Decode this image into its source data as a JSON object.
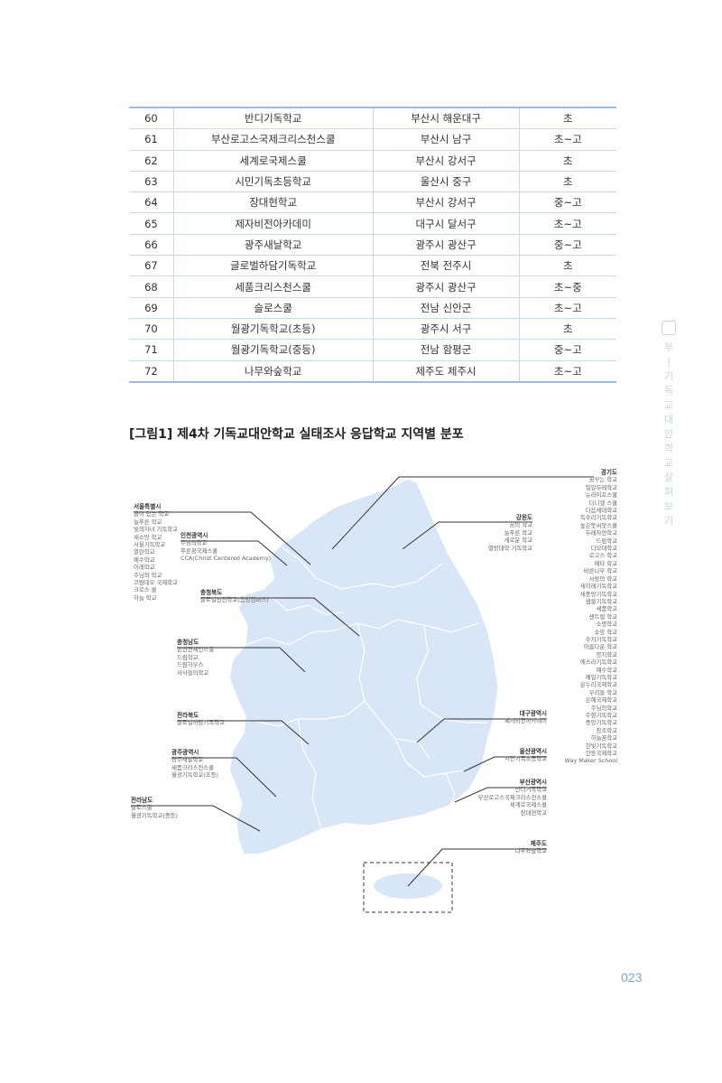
{
  "table": {
    "rows": [
      {
        "no": "60",
        "name": "반디기독학교",
        "region": "부산시 해운대구",
        "level": "초"
      },
      {
        "no": "61",
        "name": "부산로고스국제크리스천스쿨",
        "region": "부산시 남구",
        "level": "초~고"
      },
      {
        "no": "62",
        "name": "세계로국제스쿨",
        "region": "부산시 강서구",
        "level": "초"
      },
      {
        "no": "63",
        "name": "시민기독초등학교",
        "region": "울산시 중구",
        "level": "초"
      },
      {
        "no": "64",
        "name": "장대현학교",
        "region": "부산시 강서구",
        "level": "중~고"
      },
      {
        "no": "65",
        "name": "제자비전아카데미",
        "region": "대구시 달서구",
        "level": "초~고"
      },
      {
        "no": "66",
        "name": "광주새날학교",
        "region": "광주시 광산구",
        "level": "중~고"
      },
      {
        "no": "67",
        "name": "글로벌하담기독학교",
        "region": "전북 전주시",
        "level": "초"
      },
      {
        "no": "68",
        "name": "세품크리스천스쿨",
        "region": "광주시 광산구",
        "level": "초~중"
      },
      {
        "no": "69",
        "name": "슬로스쿨",
        "region": "전남 신안군",
        "level": "초~고"
      },
      {
        "no": "70",
        "name": "월광기독학교(초등)",
        "region": "광주시 서구",
        "level": "초"
      },
      {
        "no": "71",
        "name": "월광기독학교(중등)",
        "region": "전남 함평군",
        "level": "중~고"
      },
      {
        "no": "72",
        "name": "나무와숲학교",
        "region": "제주도 제주시",
        "level": "초~고"
      }
    ]
  },
  "figure_title": "[그림1] 제4차 기독교대안학교 실태조사 응답학교 지역별 분포",
  "side_tab": {
    "chars": [
      "부",
      "기",
      "독",
      "교",
      "대",
      "안",
      "학",
      "교",
      "살",
      "펴",
      "보",
      "기"
    ]
  },
  "page_number": "023",
  "map": {
    "seoul": {
      "name": "서울특별시",
      "schools": [
        "꿈이 있는 학교",
        "늘푸른 학교",
        "빛의자녀 기독학교",
        "새소망 학교",
        "서울기독학교",
        "열린학교",
        "예수학교",
        "이레학교",
        "주님의 학교",
        "코람데오 국제학교",
        "크로스 쿨",
        "하늘 학교"
      ]
    },
    "incheon": {
      "name": "인천광역시",
      "schools": [
        "주님의학교",
        "푸른꿈국제스쿨",
        "CCA(Christ Centered Academy)"
      ]
    },
    "chungbuk": {
      "name": "충청북도",
      "schools": [
        "글로벌선진학교(음성캠퍼스)"
      ]
    },
    "chungnam": {
      "name": "충청남도",
      "schools": [
        "논산전세인스쿨",
        "드림학교",
        "드림하우스",
        "사사들의학교"
      ]
    },
    "jeonbuk": {
      "name": "전라북도",
      "schools": [
        "글로벌하담기독학교"
      ]
    },
    "gwangju": {
      "name": "광주광역시",
      "schools": [
        "광주새날학교",
        "세품크리스천스쿨",
        "월광기독학교(초등)"
      ]
    },
    "jeonnam": {
      "name": "전라남도",
      "schools": [
        "슬로스쿨",
        "월광기독학교(중등)"
      ]
    },
    "gangwon": {
      "name": "강원도",
      "schools": [
        "꿈의 학교",
        "늘푸른 학교",
        "새로운 학교",
        "열방대학 기독학교"
      ]
    },
    "gyeonggi": {
      "name": "경기도",
      "schools": [
        "꿈꾸는 학교",
        "밀알두레학교",
        "뉴라이프스쿨",
        "다니엘 스쿨",
        "다음세대학교",
        "독수리기독학교",
        "높은뜻씨앗스쿨",
        "두레자연학교",
        "드림학교",
        "디모데학교",
        "로고스 학교",
        "메타 학교",
        "바른나무 학교",
        "사랑의 학교",
        "새이레기독학교",
        "새중앙기독학교",
        "샘물기독학교",
        "세품학교",
        "센트럴 학교",
        "소명학교",
        "소망 학교",
        "수지기독학교",
        "아름다운 학교",
        "양지학교",
        "에스라기독학교",
        "예수학교",
        "예일기독학교",
        "온누리국제학교",
        "우리들 학교",
        "은혜국제학교",
        "주님의학교",
        "주향기독학교",
        "중앙기독학교",
        "창조학교",
        "하늘꿈학교",
        "한빛기독학교",
        "한동국제학교",
        "Way Maker School"
      ]
    },
    "daegu": {
      "name": "대구광역시",
      "schools": [
        "제자비전아카데미"
      ]
    },
    "ulsan": {
      "name": "울산광역시",
      "schools": [
        "시민기독초등학교"
      ]
    },
    "busan": {
      "name": "부산광역시",
      "schools": [
        "반디기독학교",
        "부산로고스국제크리스천스쿨",
        "세계로국제스쿨",
        "장대현학교"
      ]
    },
    "jeju": {
      "name": "제주도",
      "schools": [
        "나무와숲학교"
      ]
    }
  }
}
